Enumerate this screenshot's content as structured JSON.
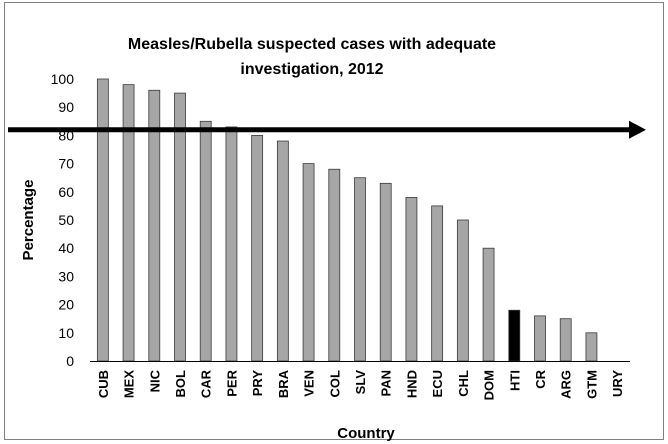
{
  "chart_data": {
    "type": "bar",
    "title_line1": "Measles/Rubella suspected cases with adequate",
    "title_line2": "investigation, 2012",
    "xlabel": "Country",
    "ylabel": "Percentage",
    "ylim": [
      0,
      100
    ],
    "yticks": [
      0,
      10,
      20,
      30,
      40,
      50,
      60,
      70,
      80,
      90,
      100
    ],
    "categories": [
      "CUB",
      "MEX",
      "NIC",
      "BOL",
      "CAR",
      "PER",
      "PRY",
      "BRA",
      "VEN",
      "COL",
      "SLV",
      "PAN",
      "HND",
      "ECU",
      "CHL",
      "DOM",
      "HTI",
      "CR",
      "ARG",
      "GTM",
      "URY"
    ],
    "values": [
      100,
      98,
      96,
      95,
      85,
      83,
      80,
      78,
      70,
      68,
      65,
      63,
      58,
      55,
      50,
      40,
      18,
      16,
      15,
      10,
      0
    ],
    "highlight_category": "HTI",
    "reference_line": 82,
    "grid": false,
    "legend": "none",
    "colors": {
      "bar": "#a6a6a6",
      "highlight": "#000000",
      "reference": "#000000"
    }
  }
}
